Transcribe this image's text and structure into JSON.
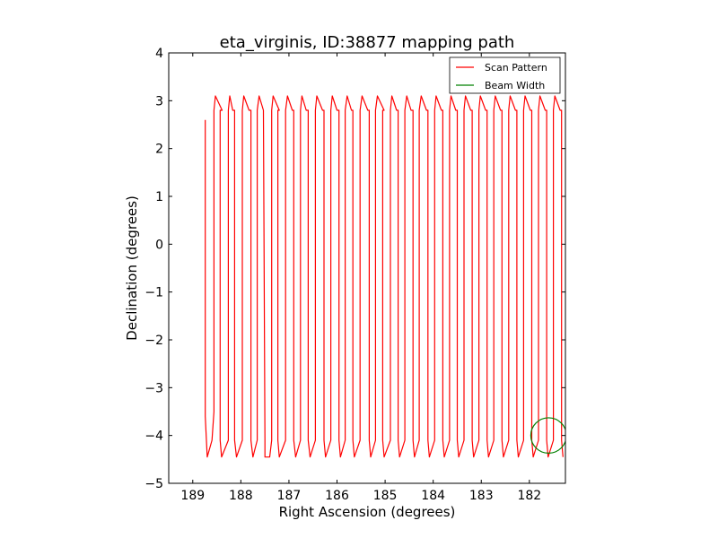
{
  "chart_data": {
    "type": "line",
    "title": "eta_virginis, ID:38877 mapping path",
    "xlabel": "Right Ascension (degrees)",
    "ylabel": "Declination (degrees)",
    "xlim": [
      189.5,
      181.25
    ],
    "ylim": [
      -5,
      4
    ],
    "x_inverted": true,
    "xticks": [
      189,
      188,
      187,
      186,
      185,
      184,
      183,
      182
    ],
    "yticks": [
      -5,
      -4,
      -3,
      -2,
      -1,
      0,
      1,
      2,
      3,
      4
    ],
    "x_tick_labels": [
      "189",
      "188",
      "187",
      "186",
      "185",
      "184",
      "183",
      "182"
    ],
    "y_tick_labels": [
      "−5",
      "−4",
      "−3",
      "−2",
      "−1",
      "0",
      "1",
      "2",
      "3",
      "4"
    ],
    "grid": false,
    "legend": {
      "placement": "top-right",
      "entries": [
        "Scan Pattern",
        "Beam Width"
      ]
    },
    "colors": {
      "scan": "#ff0000",
      "beam": "#008000"
    },
    "series": [
      {
        "name": "Scan Pattern",
        "style": "line",
        "x": [
          188.74,
          188.74,
          188.7,
          188.7,
          188.6,
          188.56,
          188.56,
          188.53,
          188.53,
          188.39,
          188.43,
          188.43,
          188.4,
          188.4,
          188.26,
          188.26,
          188.23,
          188.23,
          188.17,
          188.13,
          188.13,
          188.09,
          188.09,
          187.97,
          187.97,
          187.94,
          187.94,
          187.83,
          187.79,
          187.79,
          187.75,
          187.75,
          187.66,
          187.66,
          187.62,
          187.62,
          187.53,
          187.53,
          187.5,
          187.5,
          187.4,
          187.36,
          187.36,
          187.33,
          187.33,
          187.2,
          187.23,
          187.23,
          187.2,
          187.2,
          187.07,
          187.07,
          187.03,
          187.03,
          186.93,
          186.9,
          186.9,
          186.86,
          186.86,
          186.76,
          186.76,
          186.73,
          186.73,
          186.64,
          186.6,
          186.6,
          186.56,
          186.56,
          186.45,
          186.45,
          186.42,
          186.42,
          186.3,
          186.27,
          186.27,
          186.24,
          186.24,
          186.13,
          186.13,
          186.1,
          186.1,
          186.0,
          185.96,
          185.96,
          185.93,
          185.93,
          185.83,
          185.83,
          185.79,
          185.79,
          185.7,
          185.67,
          185.67,
          185.64,
          185.64,
          185.52,
          185.52,
          185.48,
          185.48,
          185.36,
          185.33,
          185.33,
          185.3,
          185.3,
          185.2,
          185.2,
          185.16,
          185.16,
          185.02,
          185.05,
          185.05,
          185.02,
          185.02,
          184.89,
          184.89,
          184.86,
          184.86,
          184.76,
          184.73,
          184.73,
          184.7,
          184.7,
          184.59,
          184.59,
          184.55,
          184.55,
          184.46,
          184.42,
          184.42,
          184.39,
          184.39,
          184.29,
          184.29,
          184.25,
          184.25,
          184.14,
          184.11,
          184.11,
          184.08,
          184.08,
          183.97,
          183.97,
          183.94,
          183.94,
          183.83,
          183.8,
          183.8,
          183.77,
          183.77,
          183.66,
          183.66,
          183.63,
          183.63,
          183.53,
          183.5,
          183.5,
          183.47,
          183.47,
          183.36,
          183.36,
          183.33,
          183.33,
          183.22,
          183.19,
          183.19,
          183.16,
          183.16,
          183.05,
          183.05,
          183.02,
          183.02,
          182.91,
          182.88,
          182.88,
          182.85,
          182.85,
          182.74,
          182.74,
          182.71,
          182.71,
          182.6,
          182.57,
          182.57,
          182.54,
          182.54,
          182.43,
          182.43,
          182.4,
          182.4,
          182.29,
          182.26,
          182.26,
          182.23,
          182.23,
          182.12,
          182.12,
          182.09,
          182.09,
          181.98,
          181.95,
          181.95,
          181.92,
          181.92,
          181.81,
          181.81,
          181.78,
          181.78,
          181.67,
          181.64,
          181.64,
          181.61,
          181.61,
          181.5,
          181.5,
          181.47,
          181.47,
          181.36,
          181.33,
          181.33,
          181.3
        ],
        "y": [
          2.6,
          -3.6,
          -4.45,
          -4.45,
          -4.1,
          -3.5,
          2.8,
          3.1,
          3.1,
          2.8,
          2.8,
          -4.1,
          -4.45,
          -4.45,
          -4.1,
          2.8,
          3.1,
          3.1,
          2.8,
          2.8,
          -4.1,
          -4.45,
          -4.45,
          -4.1,
          2.8,
          3.1,
          3.1,
          2.8,
          2.8,
          -4.1,
          -4.45,
          -4.45,
          -4.1,
          2.8,
          3.1,
          3.1,
          2.8,
          2.8,
          -4.1,
          -4.45,
          -4.45,
          -4.1,
          2.8,
          3.1,
          3.1,
          2.8,
          2.8,
          -4.1,
          -4.45,
          -4.45,
          -4.1,
          2.8,
          3.1,
          3.1,
          2.8,
          2.8,
          -4.1,
          -4.45,
          -4.45,
          -4.1,
          2.8,
          3.1,
          3.1,
          2.8,
          2.8,
          -4.1,
          -4.45,
          -4.45,
          -4.1,
          2.8,
          3.1,
          3.1,
          2.8,
          2.8,
          -4.1,
          -4.45,
          -4.45,
          -4.1,
          2.8,
          3.1,
          3.1,
          2.8,
          2.8,
          -4.1,
          -4.45,
          -4.45,
          -4.1,
          2.8,
          3.1,
          3.1,
          2.8,
          2.8,
          -4.1,
          -4.45,
          -4.45,
          -4.1,
          2.8,
          3.1,
          3.1,
          2.8,
          2.8,
          -4.1,
          -4.45,
          -4.45,
          -4.1,
          2.8,
          3.1,
          3.1,
          2.8,
          2.8,
          -4.1,
          -4.45,
          -4.45,
          -4.1,
          2.8,
          3.1,
          3.1,
          2.8,
          2.8,
          -4.1,
          -4.45,
          -4.45,
          -4.1,
          2.8,
          3.1,
          3.1,
          2.8,
          2.8,
          -4.1,
          -4.45,
          -4.45,
          -4.1,
          2.8,
          3.1,
          3.1,
          2.8,
          2.8,
          -4.1,
          -4.45,
          -4.45,
          -4.1,
          2.8,
          3.1,
          3.1,
          2.8,
          2.8,
          -4.1,
          -4.45,
          -4.45,
          -4.1,
          2.8,
          3.1,
          3.1,
          2.8,
          2.8,
          -4.1,
          -4.45,
          -4.45,
          -4.1,
          2.8,
          3.1,
          3.1,
          2.8,
          2.8,
          -4.1,
          -4.45,
          -4.45,
          -4.1,
          2.8,
          3.1,
          3.1,
          2.8,
          2.8,
          -4.1,
          -4.45,
          -4.45,
          -4.1,
          2.8,
          3.1,
          3.1,
          2.8,
          2.8,
          -4.1,
          -4.45,
          -4.45,
          -4.1,
          2.8,
          3.1,
          3.1,
          2.8,
          2.8,
          -4.1,
          -4.45,
          -4.45,
          -4.1,
          2.8,
          3.1,
          3.1,
          2.8,
          2.8,
          -4.1,
          -4.45,
          -4.45,
          -4.1,
          2.8,
          3.1,
          3.1,
          2.8,
          2.8,
          -4.1,
          -4.45,
          -4.45,
          -4.1,
          2.8,
          3.1,
          3.1,
          2.8,
          2.8,
          -4.1,
          -4.45
        ]
      },
      {
        "name": "Beam Width",
        "style": "circle",
        "center": [
          181.6,
          -4.0
        ],
        "radius_deg": 0.37
      }
    ]
  }
}
